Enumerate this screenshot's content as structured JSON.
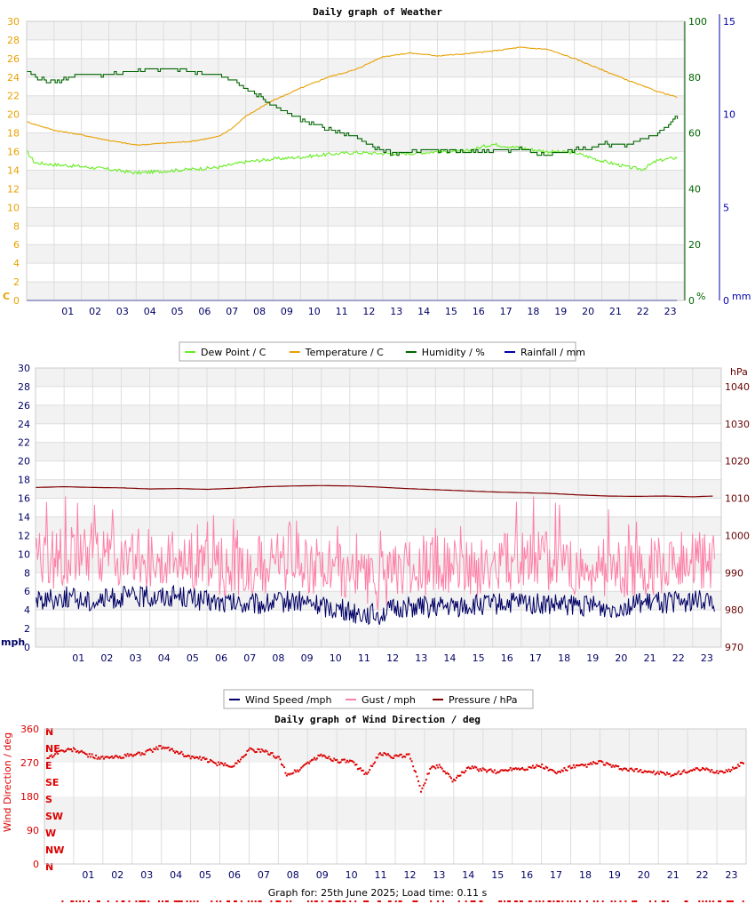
{
  "footer": "Graph for: 25th June 2025; Load time: 0.11 s",
  "chart_data": [
    {
      "type": "line",
      "title": "Daily graph of Weather",
      "x_ticks": [
        "01",
        "02",
        "03",
        "04",
        "05",
        "06",
        "07",
        "08",
        "09",
        "10",
        "11",
        "12",
        "13",
        "14",
        "15",
        "16",
        "17",
        "18",
        "19",
        "20",
        "21",
        "22",
        "23"
      ],
      "x_range": [
        0,
        24
      ],
      "left_axis": {
        "unit": "C",
        "color": "#e8a000",
        "range": [
          0,
          30
        ],
        "ticks": [
          "0",
          "2",
          "4",
          "6",
          "8",
          "10",
          "12",
          "14",
          "16",
          "18",
          "20",
          "22",
          "24",
          "26",
          "28",
          "30"
        ]
      },
      "humidity_axis": {
        "unit": "%",
        "color": "#006400",
        "range": [
          0,
          100
        ],
        "ticks": [
          "0",
          "20",
          "40",
          "60",
          "80",
          "100"
        ]
      },
      "rain_axis": {
        "unit": "mm",
        "color": "#0000aa",
        "range": [
          0,
          15
        ],
        "ticks": [
          "0",
          "5",
          "10",
          "15"
        ]
      },
      "grid": true,
      "legend_position": "bottom",
      "series": [
        {
          "name": "Dew Point / C",
          "color": "#66ee22",
          "axis": "left",
          "x": [
            0,
            0.3,
            1,
            2,
            3,
            4,
            5,
            6,
            7,
            8,
            9,
            10,
            11,
            12,
            13,
            14,
            15,
            16,
            17,
            18,
            19,
            20,
            21,
            22,
            22.5,
            23,
            23.8
          ],
          "values": [
            16,
            14.8,
            14.6,
            14.4,
            14.1,
            13.7,
            13.9,
            14.1,
            14.3,
            14.9,
            15.2,
            15.4,
            15.7,
            15.9,
            15.8,
            15.8,
            16,
            16,
            16.8,
            16.4,
            16,
            15.9,
            15,
            14.3,
            14.1,
            15,
            15.4
          ]
        },
        {
          "name": "Temperature / C",
          "color": "#e8a000",
          "axis": "left",
          "x": [
            0,
            1,
            2,
            3,
            4,
            5,
            6,
            7,
            7.5,
            8,
            9,
            10,
            11,
            12,
            13,
            14,
            15,
            16,
            17,
            18,
            19,
            20,
            21,
            22,
            23,
            23.8
          ],
          "values": [
            19.2,
            18.3,
            17.8,
            17.2,
            16.7,
            16.9,
            17.1,
            17.6,
            18.5,
            19.8,
            21.5,
            22.8,
            24,
            24.8,
            26.2,
            26.6,
            26.3,
            26.5,
            26.8,
            27.2,
            27,
            26,
            24.8,
            23.6,
            22.5,
            21.8
          ]
        },
        {
          "name": "Humidity / %",
          "color": "#006400",
          "axis": "humidity",
          "x": [
            0,
            0.3,
            1,
            1.8,
            3,
            4.5,
            5,
            6,
            7,
            7.5,
            8,
            9,
            10,
            11,
            12,
            13,
            14,
            15,
            16,
            17,
            18,
            19,
            19.5,
            20,
            20.5,
            21,
            22,
            23,
            23.8
          ],
          "values": [
            82,
            80,
            78,
            81,
            81,
            83,
            83,
            82,
            81,
            79,
            76,
            70,
            65,
            61,
            59,
            53,
            53,
            54,
            53,
            54,
            54,
            52,
            53,
            54,
            54,
            56,
            56,
            60,
            66
          ]
        },
        {
          "name": "Rainfall / mm",
          "color": "#0000aa",
          "axis": "rain",
          "x": [
            0,
            23.8
          ],
          "values": [
            0,
            0
          ]
        }
      ]
    },
    {
      "type": "line",
      "title": "",
      "x_ticks": [
        "01",
        "02",
        "03",
        "04",
        "05",
        "06",
        "07",
        "08",
        "09",
        "10",
        "11",
        "12",
        "13",
        "14",
        "15",
        "16",
        "17",
        "18",
        "19",
        "20",
        "21",
        "22",
        "23"
      ],
      "x_range": [
        0,
        24
      ],
      "left_axis": {
        "unit": "mph",
        "color": "#000066",
        "range": [
          0,
          30
        ],
        "ticks": [
          "0",
          "2",
          "4",
          "6",
          "8",
          "10",
          "12",
          "14",
          "16",
          "18",
          "20",
          "22",
          "24",
          "26",
          "28",
          "30"
        ]
      },
      "right_axis": {
        "unit": "hPa",
        "color": "#660000",
        "range": [
          970,
          1045
        ],
        "ticks": [
          "970",
          "980",
          "990",
          "1000",
          "1010",
          "1020",
          "1030",
          "1040"
        ]
      },
      "grid": true,
      "legend_position": "bottom",
      "series": [
        {
          "name": "Wind Speed /mph",
          "color": "#000066",
          "axis": "left",
          "x": [
            0,
            1,
            2,
            3,
            4,
            5,
            6,
            7,
            8,
            9,
            10,
            11,
            12,
            13,
            14,
            15,
            16,
            17,
            18,
            19,
            20,
            21,
            22,
            23,
            23.8
          ],
          "values": [
            5,
            5.4,
            4.9,
            5.4,
            5.4,
            5.6,
            4.9,
            4.6,
            4.6,
            5,
            4.5,
            3.8,
            3.5,
            4.4,
            4.2,
            4.4,
            4.6,
            4.8,
            4.5,
            4.5,
            4.2,
            4.6,
            4.8,
            4.9,
            5
          ]
        },
        {
          "name": "Gust / mph",
          "color": "#ff80a8",
          "axis": "left",
          "x": [
            0,
            1,
            2,
            3,
            4,
            5,
            6,
            7,
            8,
            9,
            10,
            11,
            12,
            13,
            14,
            15,
            16,
            17,
            18,
            19,
            20,
            21,
            22,
            23,
            23.8
          ],
          "values": [
            9,
            9.8,
            10.5,
            9.7,
            9.5,
            9.8,
            8.7,
            8.6,
            8.9,
            9.2,
            8.6,
            7.6,
            7.1,
            8.3,
            8.8,
            8.6,
            8.9,
            9.4,
            9.1,
            8.7,
            8.4,
            8.6,
            9,
            9.3,
            9.2
          ],
          "peaks": [
            15.6,
            16.2,
            15.5,
            15.3,
            14.8,
            13.2,
            13.5,
            14.2,
            13.8,
            12.6,
            12.2,
            12.9,
            13.5,
            13,
            13.6,
            13,
            12.2,
            12.5,
            12,
            12.8,
            13,
            12.2
          ]
        },
        {
          "name": "Pressure / hPa",
          "color": "#800000",
          "axis": "right",
          "x": [
            0,
            1,
            2,
            3,
            4,
            5,
            6,
            7,
            8,
            9,
            10,
            11,
            12,
            13,
            14,
            15,
            16,
            17,
            18,
            19,
            20,
            21,
            22,
            23,
            23.8
          ],
          "values": [
            1012.9,
            1013.1,
            1012.9,
            1012.8,
            1012.5,
            1012.6,
            1012.4,
            1012.7,
            1013.1,
            1013.3,
            1013.4,
            1013.3,
            1013.0,
            1012.6,
            1012.3,
            1012.0,
            1011.7,
            1011.5,
            1011.3,
            1010.9,
            1010.6,
            1010.5,
            1010.6,
            1010.4,
            1010.6
          ]
        }
      ]
    },
    {
      "type": "scatter",
      "title": "Daily graph of Wind Direction / deg",
      "ylabel": "Wind Direction / deg",
      "color": "#dd0000",
      "x_ticks": [
        "01",
        "02",
        "03",
        "04",
        "05",
        "06",
        "07",
        "08",
        "09",
        "10",
        "11",
        "12",
        "13",
        "14",
        "15",
        "16",
        "17",
        "18",
        "19",
        "20",
        "21",
        "22",
        "23"
      ],
      "x_range": [
        0,
        24
      ],
      "y_range": [
        0,
        360
      ],
      "y_ticks": [
        "0",
        "90",
        "180",
        "270",
        "360"
      ],
      "compass_labels": [
        "N",
        "NE",
        "E",
        "SE",
        "S",
        "SW",
        "W",
        "NW",
        "N"
      ],
      "grid": true,
      "x": [
        0.2,
        0.5,
        1,
        1.5,
        2,
        2.5,
        3,
        3.5,
        4,
        4.5,
        5,
        5.5,
        6,
        6.5,
        7,
        7.5,
        8,
        8.3,
        8.7,
        9,
        9.5,
        10,
        10.5,
        11,
        11.5,
        12,
        12.5,
        12.9,
        13.2,
        13.5,
        13.8,
        14,
        14.5,
        15,
        15.5,
        16,
        16.5,
        17,
        17.5,
        18,
        18.5,
        19,
        19.5,
        20,
        20.5,
        21,
        21.5,
        22,
        22.5,
        23,
        23.5,
        23.9
      ],
      "values": [
        285,
        300,
        305,
        290,
        282,
        285,
        290,
        298,
        312,
        300,
        285,
        278,
        265,
        262,
        305,
        300,
        285,
        238,
        250,
        270,
        290,
        275,
        272,
        240,
        295,
        285,
        290,
        192,
        255,
        262,
        240,
        220,
        258,
        250,
        245,
        255,
        255,
        262,
        242,
        258,
        262,
        272,
        258,
        250,
        248,
        242,
        238,
        248,
        252,
        245,
        250,
        272
      ]
    }
  ]
}
